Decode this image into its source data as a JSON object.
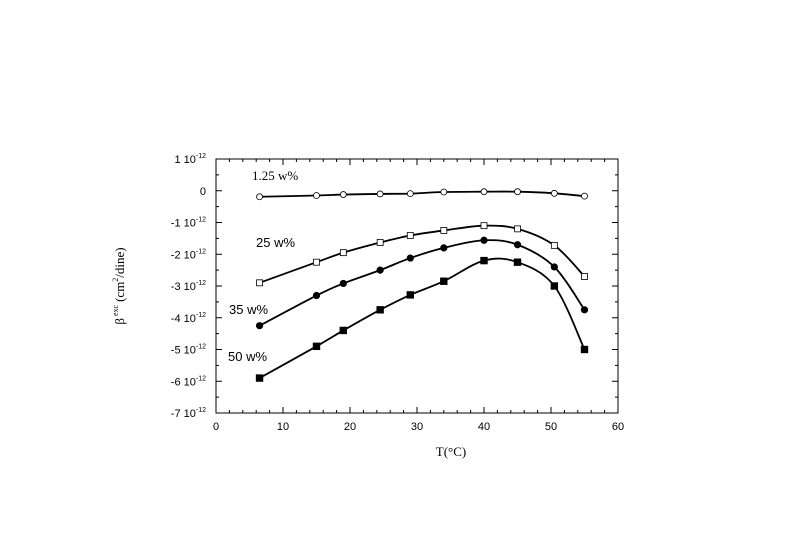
{
  "chart_data": {
    "type": "line",
    "xlabel": "T(°C)",
    "ylabel": {
      "symbol": "β",
      "superscript": "exc",
      "unit_prefix": "(cm",
      "unit_exp": "2",
      "unit_suffix": "/dine)"
    },
    "xlim": [
      0,
      60
    ],
    "ylim": [
      -7e-12,
      1e-12
    ],
    "x_ticks": [
      "0",
      "10",
      "20",
      "30",
      "40",
      "50",
      "60"
    ],
    "y_ticks": [
      {
        "mantissa": "1 10",
        "exp": "-12",
        "value": 1e-12
      },
      {
        "mantissa": "0",
        "exp": "",
        "value": 0
      },
      {
        "mantissa": "-1 10",
        "exp": "-12",
        "value": -1e-12
      },
      {
        "mantissa": "-2 10",
        "exp": "-12",
        "value": -2e-12
      },
      {
        "mantissa": "-3 10",
        "exp": "-12",
        "value": -3e-12
      },
      {
        "mantissa": "-4 10",
        "exp": "-12",
        "value": -4e-12
      },
      {
        "mantissa": "-5 10",
        "exp": "-12",
        "value": -5e-12
      },
      {
        "mantissa": "-6 10",
        "exp": "-12",
        "value": -6e-12
      },
      {
        "mantissa": "-7 10",
        "exp": "-12",
        "value": -7e-12
      }
    ],
    "series": [
      {
        "name": "1.25 w%",
        "marker": "open-circle",
        "x": [
          6.5,
          15,
          19,
          24.5,
          29,
          34,
          40,
          45,
          50.5,
          55
        ],
        "y": [
          -1.9e-13,
          -1.5e-13,
          -1.2e-13,
          -1e-13,
          -9e-14,
          -4e-14,
          -3e-14,
          -3e-14,
          -8e-14,
          -1.7e-13
        ]
      },
      {
        "name": "25 w%",
        "marker": "open-square",
        "x": [
          6.5,
          15,
          19,
          24.5,
          29,
          34,
          40,
          45,
          50.5,
          55
        ],
        "y": [
          -2.9e-12,
          -2.25e-12,
          -1.95e-12,
          -1.63e-12,
          -1.41e-12,
          -1.25e-12,
          -1.1e-12,
          -1.2e-12,
          -1.72e-12,
          -2.7e-12
        ]
      },
      {
        "name": "35 w%",
        "marker": "filled-circle",
        "x": [
          6.5,
          15,
          19,
          24.5,
          29,
          34,
          40,
          45,
          50.5,
          55
        ],
        "y": [
          -4.25e-12,
          -3.3e-12,
          -2.92e-12,
          -2.5e-12,
          -2.12e-12,
          -1.8e-12,
          -1.56e-12,
          -1.7e-12,
          -2.4e-12,
          -3.75e-12
        ]
      },
      {
        "name": "50 w%",
        "marker": "filled-square",
        "x": [
          6.5,
          15,
          19,
          24.5,
          29,
          34,
          40,
          45,
          50.5,
          55
        ],
        "y": [
          -5.9e-12,
          -4.9e-12,
          -4.4e-12,
          -3.75e-12,
          -3.28e-12,
          -2.85e-12,
          -2.2e-12,
          -2.25e-12,
          -3e-12,
          -5e-12
        ]
      }
    ],
    "grid": false,
    "legend": "inline"
  }
}
